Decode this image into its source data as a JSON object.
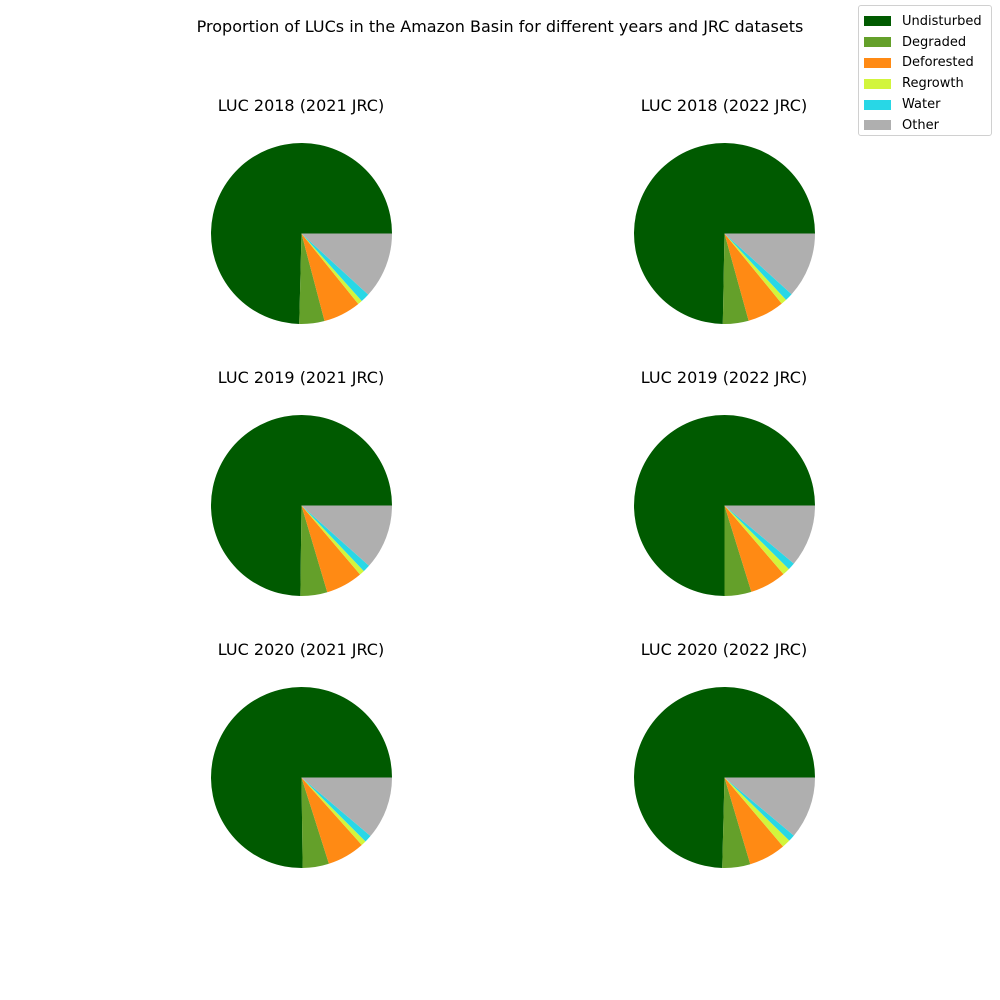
{
  "figure": {
    "title": "Proportion of LUCs in the Amazon Basin for different years and JRC datasets"
  },
  "legend": {
    "entries": [
      {
        "label": "Undisturbed",
        "color": "#005a00"
      },
      {
        "label": "Degraded",
        "color": "#64a02a"
      },
      {
        "label": "Deforested",
        "color": "#ff8a14"
      },
      {
        "label": "Regrowth",
        "color": "#d2f53c"
      },
      {
        "label": "Water",
        "color": "#28d7e6"
      },
      {
        "label": "Other",
        "color": "#afafaf"
      }
    ]
  },
  "chart_data": [
    {
      "type": "pie",
      "title": "LUC 2018 (2021 JRC)",
      "labels": [
        "Undisturbed",
        "Degraded",
        "Deforested",
        "Regrowth",
        "Water",
        "Other"
      ],
      "values": [
        74.6,
        4.5,
        6.7,
        0.8,
        1.6,
        11.8
      ]
    },
    {
      "type": "pie",
      "title": "LUC 2018 (2022 JRC)",
      "labels": [
        "Undisturbed",
        "Degraded",
        "Deforested",
        "Regrowth",
        "Water",
        "Other"
      ],
      "values": [
        74.7,
        4.6,
        6.6,
        1.0,
        1.4,
        11.7
      ]
    },
    {
      "type": "pie",
      "title": "LUC 2019 (2021 JRC)",
      "labels": [
        "Undisturbed",
        "Degraded",
        "Deforested",
        "Regrowth",
        "Water",
        "Other"
      ],
      "values": [
        74.8,
        4.8,
        6.6,
        0.9,
        1.3,
        11.6
      ]
    },
    {
      "type": "pie",
      "title": "LUC 2019 (2022 JRC)",
      "labels": [
        "Undisturbed",
        "Degraded",
        "Deforested",
        "Regrowth",
        "Water",
        "Other"
      ],
      "values": [
        75.0,
        4.8,
        6.5,
        1.3,
        1.3,
        11.1
      ]
    },
    {
      "type": "pie",
      "title": "LUC 2020 (2021 JRC)",
      "labels": [
        "Undisturbed",
        "Degraded",
        "Deforested",
        "Regrowth",
        "Water",
        "Other"
      ],
      "values": [
        75.2,
        4.7,
        6.7,
        0.9,
        1.3,
        11.2
      ]
    },
    {
      "type": "pie",
      "title": "LUC 2020 (2022 JRC)",
      "labels": [
        "Undisturbed",
        "Degraded",
        "Deforested",
        "Regrowth",
        "Water",
        "Other"
      ],
      "values": [
        74.6,
        5.0,
        6.6,
        1.5,
        1.2,
        11.1
      ]
    }
  ]
}
